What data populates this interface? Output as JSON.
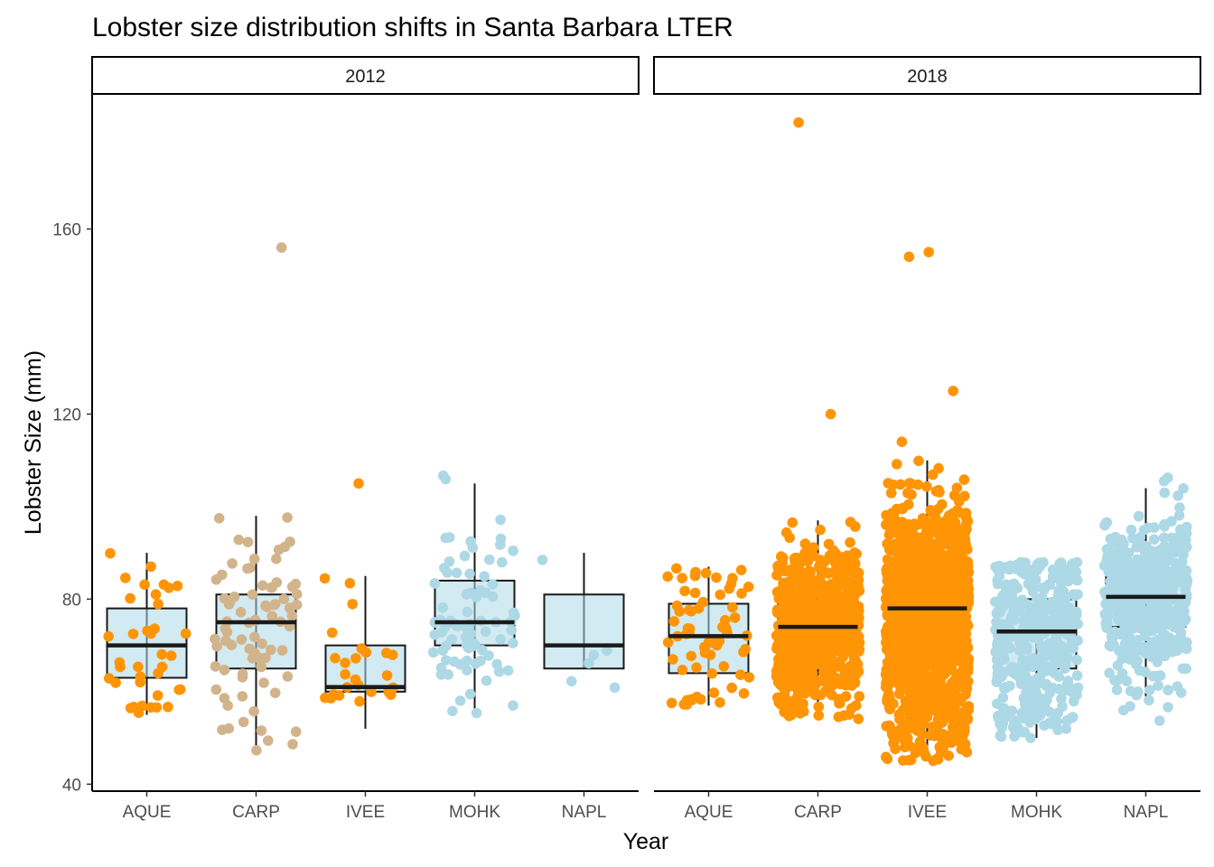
{
  "chart_data": {
    "type": "boxplot",
    "title": "Lobster size distribution shifts in Santa Barbara LTER",
    "xlabel": "Year",
    "ylabel": "Lobster Size (mm)",
    "ylim": [
      38.5,
      189
    ],
    "yticks": [
      40,
      80,
      120,
      160
    ],
    "categories": [
      "AQUE",
      "CARP",
      "IVEE",
      "MOHK",
      "NAPL"
    ],
    "grid": false,
    "colors": {
      "lightblue": "#add8e6",
      "orange": "#ff9405",
      "tan": "#d2b48c",
      "box_line": "#1a1a1a"
    },
    "panels": [
      {
        "facet": "2012",
        "boxes": [
          {
            "site": "AQUE",
            "fill": "lightblue",
            "whisker_low": 55,
            "q1": 63,
            "median": 70,
            "q3": 78,
            "whisker_high": 90,
            "points": {
              "color": "orange",
              "n": 38,
              "min": 55,
              "max": 90,
              "outliers": []
            }
          },
          {
            "site": "CARP",
            "fill": "lightblue",
            "whisker_low": 47,
            "q1": 65,
            "median": 75,
            "q3": 81,
            "whisker_high": 98,
            "points": {
              "color": "tan",
              "n": 80,
              "min": 47,
              "max": 98,
              "outliers": [
                156
              ]
            }
          },
          {
            "site": "IVEE",
            "fill": "lightblue",
            "whisker_low": 52,
            "q1": 60,
            "median": 61,
            "q3": 70,
            "whisker_high": 85,
            "points": {
              "color": "orange",
              "n": 26,
              "min": 52,
              "max": 86,
              "outliers": [
                105
              ]
            }
          },
          {
            "site": "MOHK",
            "fill": "lightblue",
            "whisker_low": 55,
            "q1": 70,
            "median": 75,
            "q3": 84,
            "whisker_high": 105,
            "points": {
              "color": "lightblue",
              "n": 83,
              "min": 55,
              "max": 110,
              "outliers": []
            }
          },
          {
            "site": "NAPL",
            "fill": "lightblue",
            "whisker_low": 65,
            "q1": 65,
            "median": 70,
            "q3": 81,
            "whisker_high": 90,
            "points": {
              "color": "lightblue",
              "n": 6,
              "min": 60,
              "max": 90,
              "outliers": []
            }
          }
        ]
      },
      {
        "facet": "2018",
        "boxes": [
          {
            "site": "AQUE",
            "fill": "lightblue",
            "whisker_low": 57,
            "q1": 64,
            "median": 72,
            "q3": 79,
            "whisker_high": 87,
            "points": {
              "color": "orange",
              "n": 68,
              "min": 57,
              "max": 87,
              "outliers": []
            }
          },
          {
            "site": "CARP",
            "fill": "tan",
            "whisker_low": 54,
            "q1": 68,
            "median": 74,
            "q3": 80,
            "whisker_high": 97,
            "points": {
              "color": "orange",
              "n": 700,
              "min": 54,
              "max": 102,
              "outliers": [
                120,
                183
              ]
            }
          },
          {
            "site": "IVEE",
            "fill": "tan",
            "whisker_low": 45,
            "q1": 68,
            "median": 78,
            "q3": 85,
            "whisker_high": 110,
            "points": {
              "color": "orange",
              "n": 1500,
              "min": 45,
              "max": 110,
              "outliers": [
                114,
                125,
                154,
                155
              ]
            }
          },
          {
            "site": "MOHK",
            "fill": "lightblue",
            "whisker_low": 50,
            "q1": 65,
            "median": 73,
            "q3": 80,
            "whisker_high": 88,
            "points": {
              "color": "lightblue",
              "n": 400,
              "min": 50,
              "max": 88,
              "outliers": []
            }
          },
          {
            "site": "NAPL",
            "fill": "lightblue",
            "whisker_low": 59,
            "q1": 74,
            "median": 80.5,
            "q3": 86,
            "whisker_high": 104,
            "points": {
              "color": "lightblue",
              "n": 480,
              "min": 52,
              "max": 112,
              "outliers": []
            }
          }
        ]
      }
    ]
  }
}
